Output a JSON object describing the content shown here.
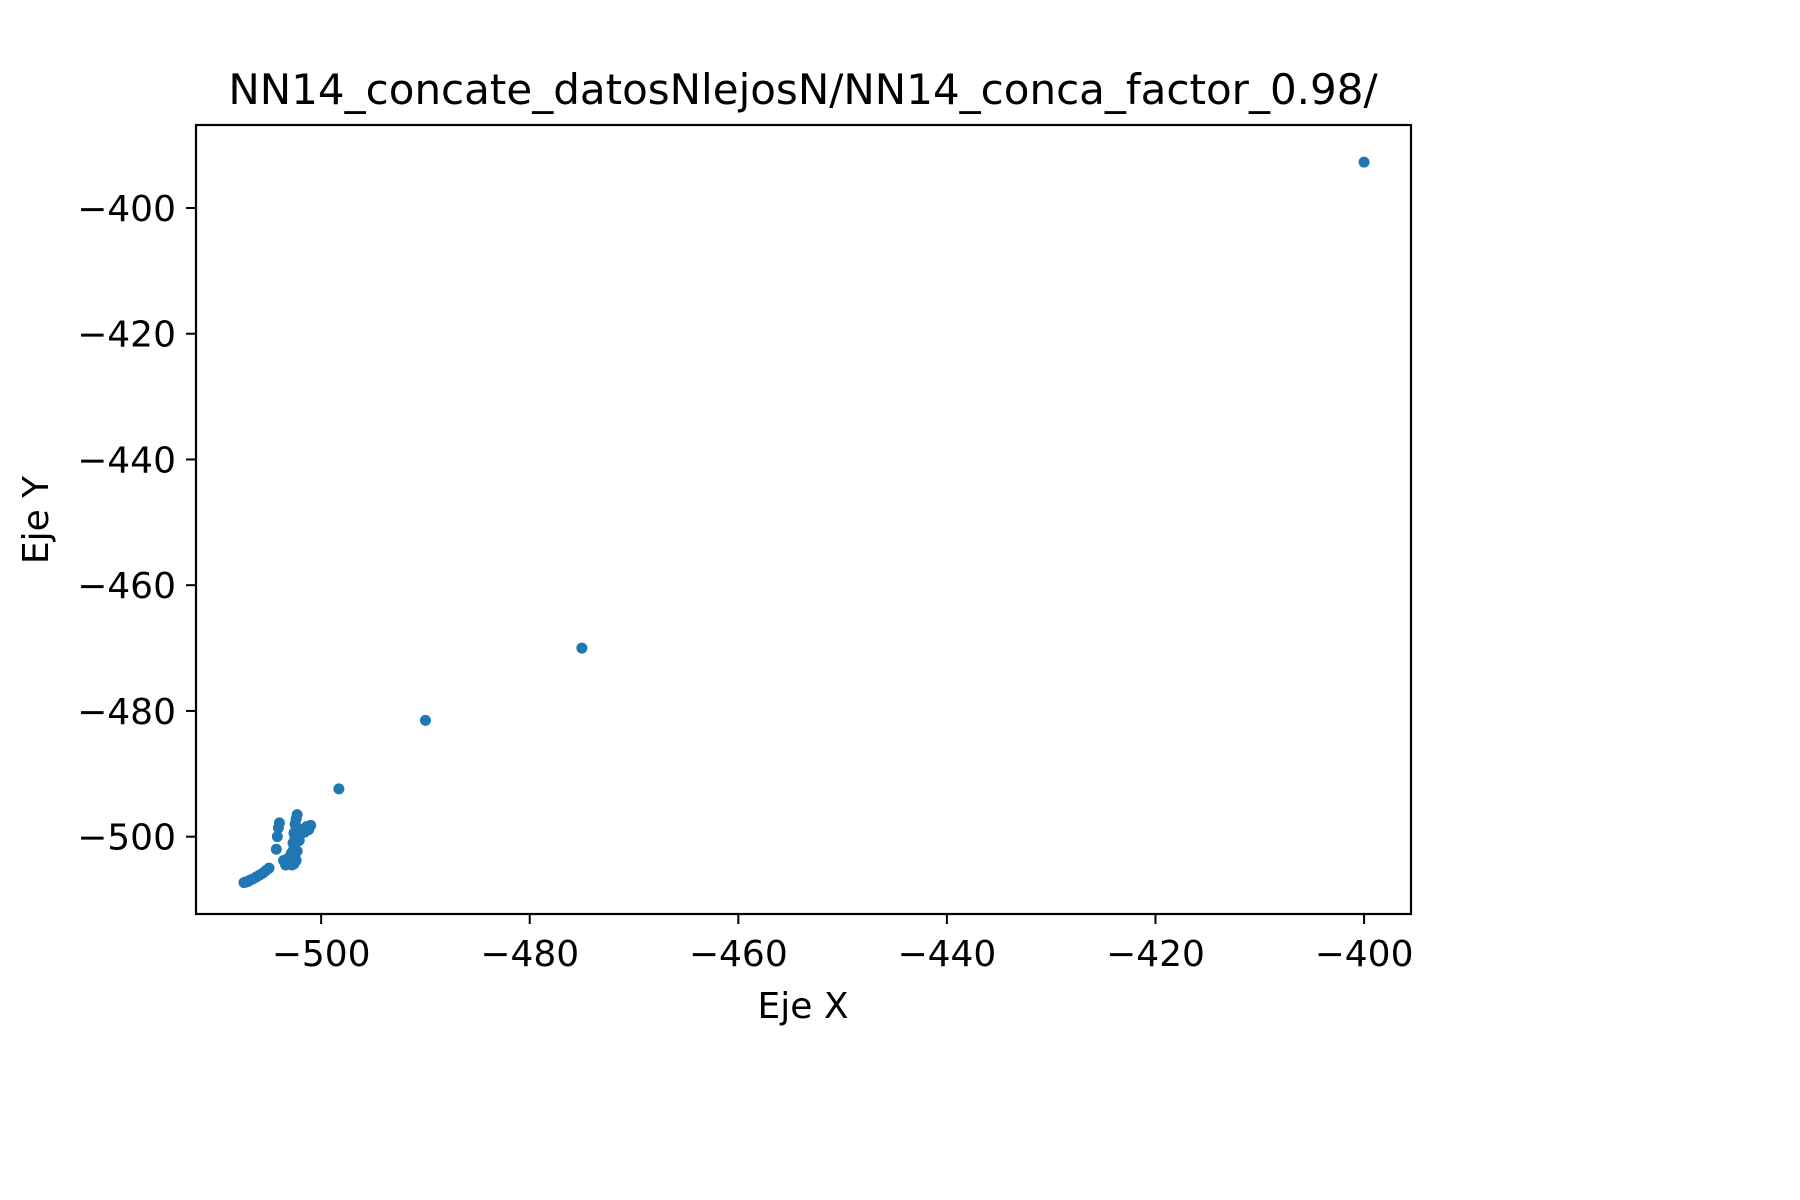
{
  "chart_data": {
    "type": "scatter",
    "title": "NN14_concate_datosNlejosN/NN14_conca_factor_0.98/",
    "xlabel": "Eje X",
    "ylabel": "Eje Y",
    "xlim": [
      -512,
      -395.5
    ],
    "ylim": [
      -512.3,
      -386.8
    ],
    "xticks": [
      -500,
      -480,
      -460,
      -440,
      -420,
      -400
    ],
    "yticks": [
      -400,
      -420,
      -440,
      -460,
      -480,
      -500
    ],
    "xtick_labels": [
      "−500",
      "−480",
      "−460",
      "−440",
      "−420",
      "−400"
    ],
    "ytick_labels": [
      "−400",
      "−420",
      "−440",
      "−460",
      "−480",
      "−500"
    ],
    "grid": false,
    "legend": "none",
    "marker_color": "#1f77b4",
    "x": [
      -400.0,
      -475.0,
      -490.0,
      -498.3,
      -501.0,
      -501.4,
      -501.8,
      -502.0,
      -502.2,
      -502.2,
      -502.1,
      -502.3,
      -502.4,
      -502.5,
      -502.4,
      -502.6,
      -502.5,
      -502.7,
      -502.6,
      -502.8,
      -502.5,
      -502.4,
      -503.0,
      -503.2,
      -502.6,
      -502.8,
      -503.4,
      -504.0,
      -504.1,
      -504.2,
      -504.3,
      -503.6,
      -503.4,
      -505.0,
      -505.3,
      -505.6,
      -505.9,
      -506.2,
      -506.5,
      -506.8,
      -507.0,
      -507.2,
      -507.4,
      -502.9,
      -502.7,
      -502.3,
      -501.6,
      -501.2
    ],
    "y": [
      -392.7,
      -470.0,
      -481.5,
      -492.4,
      -498.2,
      -498.4,
      -498.8,
      -499.1,
      -499.5,
      -500.1,
      -500.6,
      -496.5,
      -497.2,
      -498.0,
      -498.8,
      -499.4,
      -500.2,
      -501.0,
      -501.8,
      -502.5,
      -503.2,
      -503.8,
      -504.0,
      -503.5,
      -504.3,
      -504.5,
      -504.5,
      -497.8,
      -498.6,
      -500.0,
      -502.0,
      -503.8,
      -504.4,
      -505.0,
      -505.4,
      -505.8,
      -506.1,
      -506.4,
      -506.7,
      -506.9,
      -507.1,
      -507.2,
      -507.3,
      -502.8,
      -503.4,
      -502.3,
      -499.3,
      -498.9
    ]
  }
}
